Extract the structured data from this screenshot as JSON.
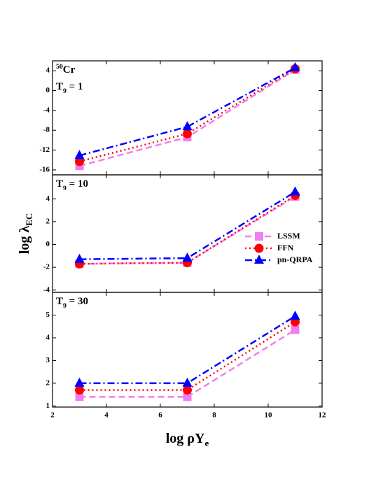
{
  "chart_data": [
    {
      "type": "line",
      "annotation": [
        "50",
        "Cr"
      ],
      "subtitle": [
        "T",
        "9",
        " = 1"
      ],
      "xlim": [
        2,
        12
      ],
      "xticks": [
        2,
        4,
        6,
        8,
        10,
        12
      ],
      "ylim": [
        -17,
        6
      ],
      "yticks": [
        -16,
        -12,
        -8,
        -4,
        0,
        4
      ],
      "x": [
        3,
        7,
        11
      ],
      "series": [
        {
          "name": "LSSM",
          "color": "#f07ef0",
          "linestyle": "dashed",
          "marker": "square",
          "values": [
            -15.2,
            -9.4,
            4.2
          ]
        },
        {
          "name": "FFN",
          "color": "#ff0000",
          "linestyle": "dotted",
          "marker": "circle",
          "values": [
            -14.3,
            -8.7,
            4.4
          ]
        },
        {
          "name": "pn-QRPA",
          "color": "#0000ff",
          "linestyle": "dashdot",
          "marker": "triangle",
          "values": [
            -13.1,
            -7.3,
            4.6
          ]
        }
      ]
    },
    {
      "type": "line",
      "subtitle": [
        "T",
        "9",
        " = 10"
      ],
      "ylabel": [
        "log λ",
        "EC"
      ],
      "legend": "lower right",
      "xlim": [
        2,
        12
      ],
      "xticks": [
        2,
        4,
        6,
        8,
        10,
        12
      ],
      "ylim": [
        -4.2,
        6.1
      ],
      "yticks": [
        -4,
        -2,
        0,
        2,
        4
      ],
      "x": [
        3,
        7,
        11
      ],
      "series": [
        {
          "name": "LSSM",
          "color": "#f07ef0",
          "linestyle": "dashed",
          "marker": "square",
          "values": [
            -1.7,
            -1.6,
            4.2
          ]
        },
        {
          "name": "FFN",
          "color": "#ff0000",
          "linestyle": "dotted",
          "marker": "circle",
          "values": [
            -1.7,
            -1.6,
            4.3
          ]
        },
        {
          "name": "pn-QRPA",
          "color": "#0000ff",
          "linestyle": "dashdot",
          "marker": "triangle",
          "values": [
            -1.3,
            -1.2,
            4.6
          ]
        }
      ]
    },
    {
      "type": "line",
      "subtitle": [
        "T",
        "9",
        " = 30"
      ],
      "xlabel": [
        "log ρY",
        "e"
      ],
      "xlim": [
        2,
        12
      ],
      "xticks": [
        2,
        4,
        6,
        8,
        10,
        12
      ],
      "ylim": [
        0.95,
        6
      ],
      "yticks": [
        1,
        2,
        3,
        4,
        5
      ],
      "x": [
        3,
        7,
        11
      ],
      "series": [
        {
          "name": "LSSM",
          "color": "#f07ef0",
          "linestyle": "dashed",
          "marker": "square",
          "values": [
            1.4,
            1.4,
            4.35
          ]
        },
        {
          "name": "FFN",
          "color": "#ff0000",
          "linestyle": "dotted",
          "marker": "circle",
          "values": [
            1.7,
            1.7,
            4.7
          ]
        },
        {
          "name": "pn-QRPA",
          "color": "#0000ff",
          "linestyle": "dashdot",
          "marker": "triangle",
          "values": [
            2.0,
            2.0,
            4.95
          ]
        }
      ]
    }
  ]
}
